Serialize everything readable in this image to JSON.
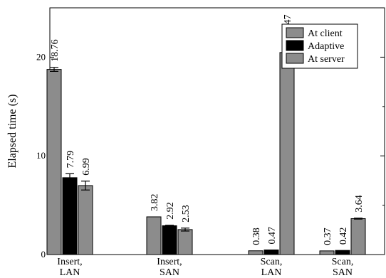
{
  "chart_data": {
    "type": "bar",
    "title": "",
    "xlabel": "",
    "ylabel": "Elapsed time (s)",
    "ylim": [
      0,
      25
    ],
    "yticks": [
      0,
      10,
      20
    ],
    "grid": false,
    "legend_position": "top-right",
    "categories": [
      {
        "line1": "Insert,",
        "line2": "LAN"
      },
      {
        "line1": "Insert,",
        "line2": "SAN"
      },
      {
        "line1": "Scan,",
        "line2": "LAN"
      },
      {
        "line1": "Scan,",
        "line2": "SAN"
      }
    ],
    "series": [
      {
        "name": "At client",
        "color": "#8c8c8c",
        "values": [
          18.76,
          3.82,
          0.38,
          0.37
        ],
        "labels": [
          "18.76",
          "3.82",
          "0.38",
          "0.37"
        ],
        "errors": [
          0.2,
          0.0,
          0.0,
          0.0
        ]
      },
      {
        "name": "Adaptive",
        "color": "#000000",
        "values": [
          7.79,
          2.92,
          0.47,
          0.42
        ],
        "labels": [
          "7.79",
          "2.92",
          "0.47",
          "0.42"
        ],
        "errors": [
          0.4,
          0.05,
          0.0,
          0.0
        ]
      },
      {
        "name": "At server",
        "color": "#8c8c8c",
        "values": [
          6.99,
          2.53,
          20.47,
          3.64
        ],
        "labels": [
          "6.99",
          "2.53",
          "20.47",
          "3.64"
        ],
        "errors": [
          0.45,
          0.15,
          1.0,
          0.05
        ]
      }
    ]
  }
}
